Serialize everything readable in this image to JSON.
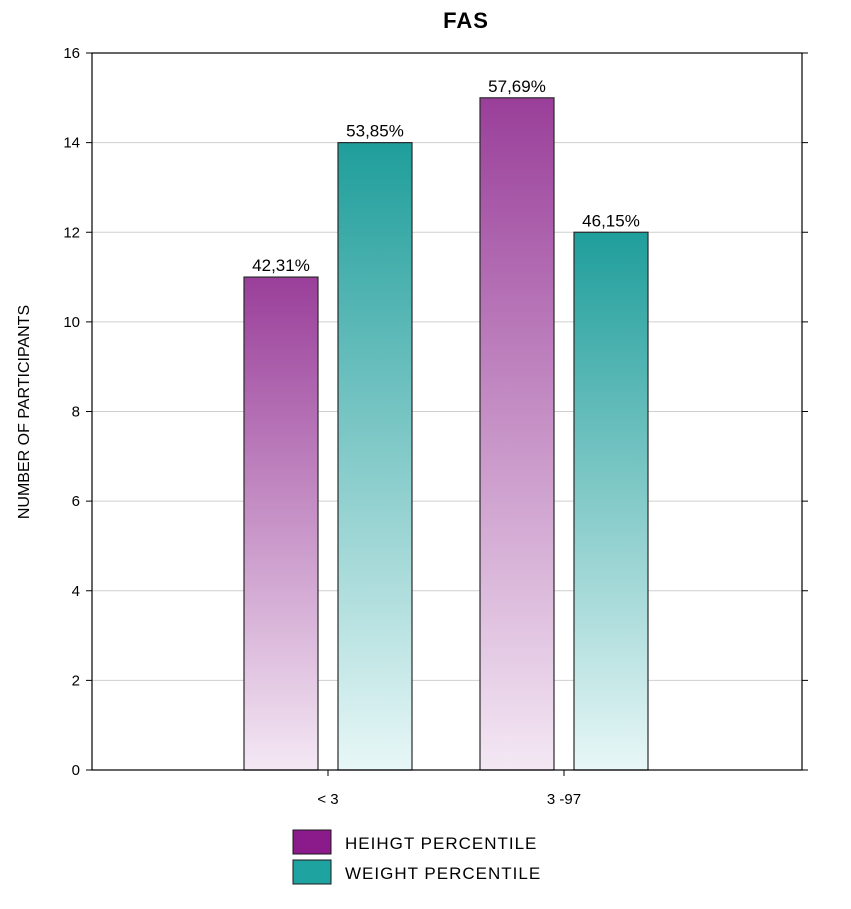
{
  "chart_data": {
    "type": "bar",
    "title": "FAS",
    "xlabel": "",
    "ylabel": "NUMBER OF PARTICIPANTS",
    "categories": [
      "< 3",
      "3 -97"
    ],
    "series": [
      {
        "name": "HEIHGT PERCENTILE",
        "values": [
          11,
          15
        ],
        "labels": [
          "42,31%",
          "57,69%"
        ],
        "color": "#8b1a8b"
      },
      {
        "name": "WEIGHT PERCENTILE",
        "values": [
          14,
          12
        ],
        "labels": [
          "53,85%",
          "46,15%"
        ],
        "color": "#1fa3a0"
      }
    ],
    "ylim": [
      0,
      16
    ],
    "yticks": [
      "0",
      "2",
      "4",
      "6",
      "8",
      "10",
      "12",
      "14",
      "16"
    ],
    "grid": true,
    "legend": "bottom-center"
  }
}
